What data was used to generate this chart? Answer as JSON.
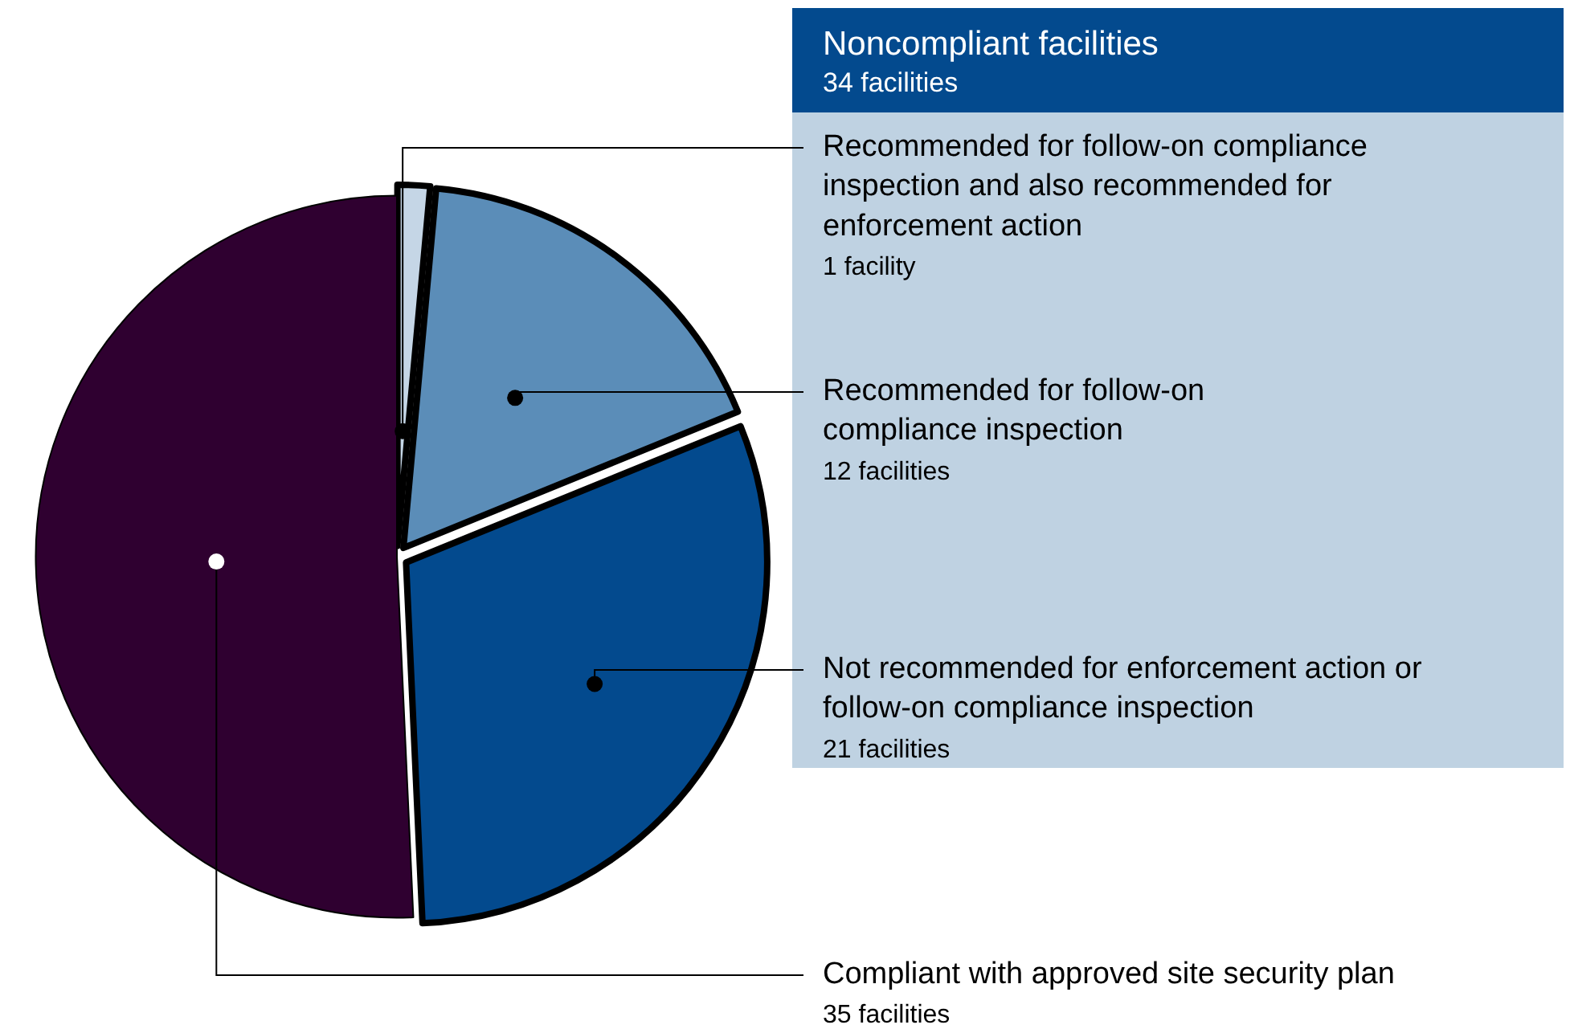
{
  "chart_data": {
    "type": "pie",
    "categories": [
      "Recommended for follow-on compliance inspection and also recommended for enforcement action",
      "Recommended for follow-on compliance inspection",
      "Not recommended for enforcement action or follow-on compliance inspection",
      "Compliant with approved site security plan"
    ],
    "values": [
      1,
      12,
      21,
      35
    ],
    "colors": [
      "#c5d6e6",
      "#5b8db8",
      "#034a8e",
      "#2f0030"
    ],
    "value_labels": [
      "1 facility",
      "12 facilities",
      "21 facilities",
      "35 facilities"
    ],
    "annotations": [
      "Noncompliant facilities",
      "34 facilities"
    ]
  }
}
